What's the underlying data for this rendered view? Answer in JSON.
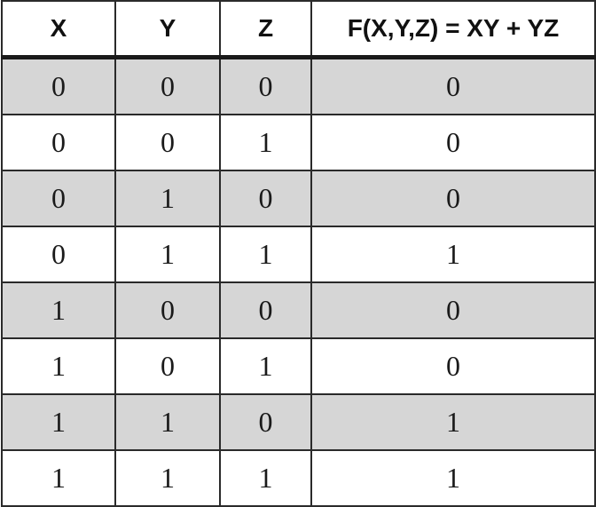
{
  "table": {
    "headers": [
      "X",
      "Y",
      "Z",
      "F(X,Y,Z) = XY + YZ"
    ],
    "rows": [
      [
        "0",
        "0",
        "0",
        "0"
      ],
      [
        "0",
        "0",
        "1",
        "0"
      ],
      [
        "0",
        "1",
        "0",
        "0"
      ],
      [
        "0",
        "1",
        "1",
        "1"
      ],
      [
        "1",
        "0",
        "0",
        "0"
      ],
      [
        "1",
        "0",
        "1",
        "0"
      ],
      [
        "1",
        "1",
        "0",
        "1"
      ],
      [
        "1",
        "1",
        "1",
        "1"
      ]
    ],
    "shaded_row_color": "#d6d6d6",
    "plain_row_color": "#ffffff",
    "border_color": "#2a2a2a"
  }
}
